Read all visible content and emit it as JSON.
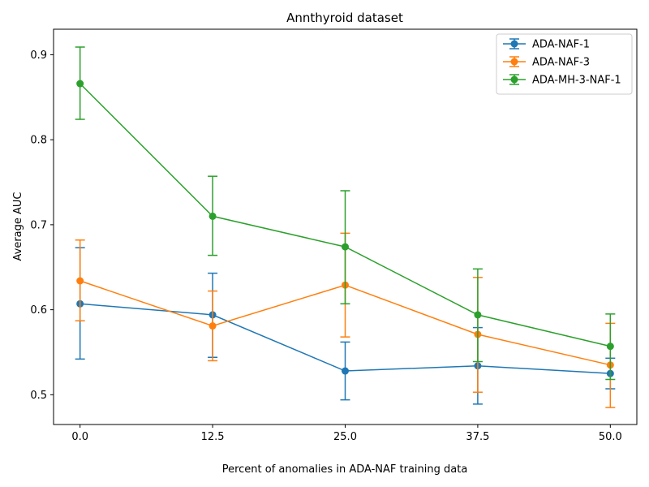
{
  "chart_data": {
    "type": "line",
    "title": "Annthyroid dataset",
    "xlabel": "Percent of anomalies in ADA-NAF training data",
    "ylabel": "Average AUC",
    "x": [
      0.0,
      12.5,
      25.0,
      37.5,
      50.0
    ],
    "x_tick_labels": [
      "0.0",
      "12.5",
      "25.0",
      "37.5",
      "50.0"
    ],
    "y_ticks": [
      0.5,
      0.6,
      0.7,
      0.8,
      0.9
    ],
    "y_tick_labels": [
      "0.5",
      "0.6",
      "0.7",
      "0.8",
      "0.9"
    ],
    "xlim": [
      -2.5,
      52.5
    ],
    "ylim": [
      0.465,
      0.93
    ],
    "grid": false,
    "legend_position": "top-right",
    "series": [
      {
        "name": "ADA-NAF-1",
        "color": "#1f77b4",
        "values": [
          0.607,
          0.594,
          0.528,
          0.534,
          0.525
        ],
        "err_low": [
          0.542,
          0.544,
          0.494,
          0.489,
          0.507
        ],
        "err_high": [
          0.673,
          0.643,
          0.562,
          0.579,
          0.543
        ]
      },
      {
        "name": "ADA-NAF-3",
        "color": "#ff7f0e",
        "values": [
          0.634,
          0.581,
          0.629,
          0.571,
          0.535
        ],
        "err_low": [
          0.587,
          0.54,
          0.568,
          0.503,
          0.485
        ],
        "err_high": [
          0.682,
          0.622,
          0.69,
          0.638,
          0.584
        ]
      },
      {
        "name": "ADA-MH-3-NAF-1",
        "color": "#2ca02c",
        "values": [
          0.866,
          0.71,
          0.674,
          0.594,
          0.557
        ],
        "err_low": [
          0.824,
          0.664,
          0.607,
          0.539,
          0.518
        ],
        "err_high": [
          0.909,
          0.757,
          0.74,
          0.648,
          0.595
        ]
      }
    ]
  }
}
